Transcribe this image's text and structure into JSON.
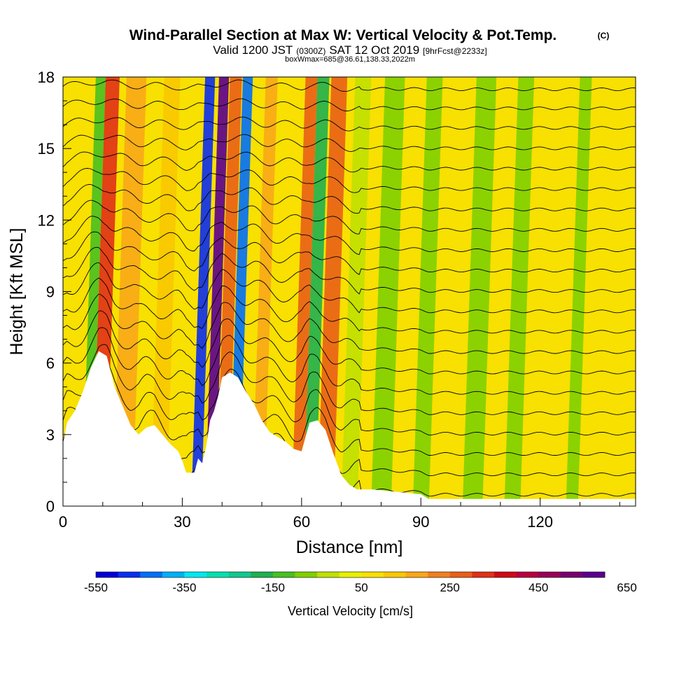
{
  "chart_data": {
    "type": "heatmap",
    "title": "Wind-Parallel Section at Max W: Vertical Velocity & Pot.Temp.",
    "title_mark": "(C)",
    "subtitle_parts": [
      "Valid 1200 JST",
      "(0300Z)",
      "SAT 12 Oct 2019",
      "[9hrFcst@2233z]"
    ],
    "subtitle2": "boxWmax=685@36.61,138.33,2022m",
    "xlabel": "Distance [nm]",
    "ylabel": "Height [Kft MSL]",
    "xlim": [
      0,
      144
    ],
    "ylim": [
      0,
      18
    ],
    "x_ticks": [
      0,
      30,
      60,
      90,
      120
    ],
    "y_ticks": [
      0,
      3,
      6,
      9,
      12,
      15,
      18
    ],
    "colorbar": {
      "label": "Vertical Velocity [cm/s]",
      "tick_values": [
        -550,
        -350,
        -150,
        50,
        250,
        450,
        650
      ],
      "tick_labels": [
        "-550",
        "-350",
        "-150",
        "50",
        "250",
        "450",
        "650"
      ],
      "colors": [
        "#0000d8",
        "#0a2ef0",
        "#0070f8",
        "#00b0f8",
        "#00e8f0",
        "#00e0b0",
        "#10c890",
        "#20b050",
        "#48c020",
        "#80d000",
        "#c0e000",
        "#e8f000",
        "#f8e000",
        "#f8c800",
        "#f8a818",
        "#f08020",
        "#e86018",
        "#e03018",
        "#d00818",
        "#b80040",
        "#980058",
        "#780070",
        "#5a0090"
      ],
      "interval": 50
    },
    "bands": [
      {
        "x": 6,
        "w": 2.5,
        "w_value": -150
      },
      {
        "x": 9,
        "w": 3.5,
        "w_value": 300
      },
      {
        "x": 15,
        "w": 5,
        "w_value": 150
      },
      {
        "x": 24,
        "w": 4,
        "w_value": 100
      },
      {
        "x": 33.5,
        "w": 2.5,
        "w_value": -500
      },
      {
        "x": 37,
        "w": 2.5,
        "w_value": 650
      },
      {
        "x": 40,
        "w": 3,
        "w_value": 250
      },
      {
        "x": 43,
        "w": 2.5,
        "w_value": -450
      },
      {
        "x": 49,
        "w": 3,
        "w_value": 150
      },
      {
        "x": 55,
        "w": 4,
        "w_value": 50
      },
      {
        "x": 59,
        "w": 3,
        "w_value": 250
      },
      {
        "x": 62,
        "w": 3,
        "w_value": -200
      },
      {
        "x": 66,
        "w": 4,
        "w_value": 250
      },
      {
        "x": 72,
        "w": 4,
        "w_value": -50
      },
      {
        "x": 80,
        "w": 5,
        "w_value": -100
      },
      {
        "x": 90,
        "w": 4,
        "w_value": -100
      },
      {
        "x": 103,
        "w": 5,
        "w_value": -100
      },
      {
        "x": 113,
        "w": 4,
        "w_value": -100
      },
      {
        "x": 128,
        "w": 3,
        "w_value": -100
      }
    ],
    "terrain": {
      "x": [
        0,
        1,
        3,
        5,
        7,
        9,
        11,
        13,
        15,
        17,
        19,
        21,
        23,
        25,
        27,
        29,
        30,
        31,
        33,
        34,
        35,
        36,
        37,
        38,
        39,
        40,
        42,
        44,
        46,
        48,
        50,
        52,
        54,
        56,
        58,
        60,
        62,
        64,
        66,
        68,
        70,
        72,
        74,
        78,
        90,
        92,
        144
      ],
      "height_kft": [
        2.6,
        3.5,
        4.0,
        4.8,
        5.8,
        6.5,
        6.3,
        5.0,
        4.2,
        3.4,
        3.0,
        3.3,
        3.4,
        3.0,
        2.6,
        2.3,
        1.9,
        1.4,
        1.4,
        2.0,
        1.8,
        2.5,
        3.6,
        4.0,
        4.6,
        5.4,
        5.6,
        5.4,
        4.8,
        4.3,
        3.6,
        3.1,
        2.9,
        2.7,
        2.4,
        2.3,
        3.5,
        3.6,
        3.2,
        2.2,
        1.3,
        0.9,
        0.7,
        0.7,
        0.5,
        0.3,
        0.3
      ]
    },
    "theta_contours": {
      "levels_kft": [
        0.8,
        1.6,
        2.4,
        3.2,
        4.0,
        4.8,
        5.6,
        6.4,
        7.2,
        8.0,
        8.8,
        9.6,
        10.4,
        11.2,
        12.0,
        12.8,
        13.6,
        14.4,
        15.2,
        16.0,
        16.8,
        17.6
      ]
    }
  }
}
